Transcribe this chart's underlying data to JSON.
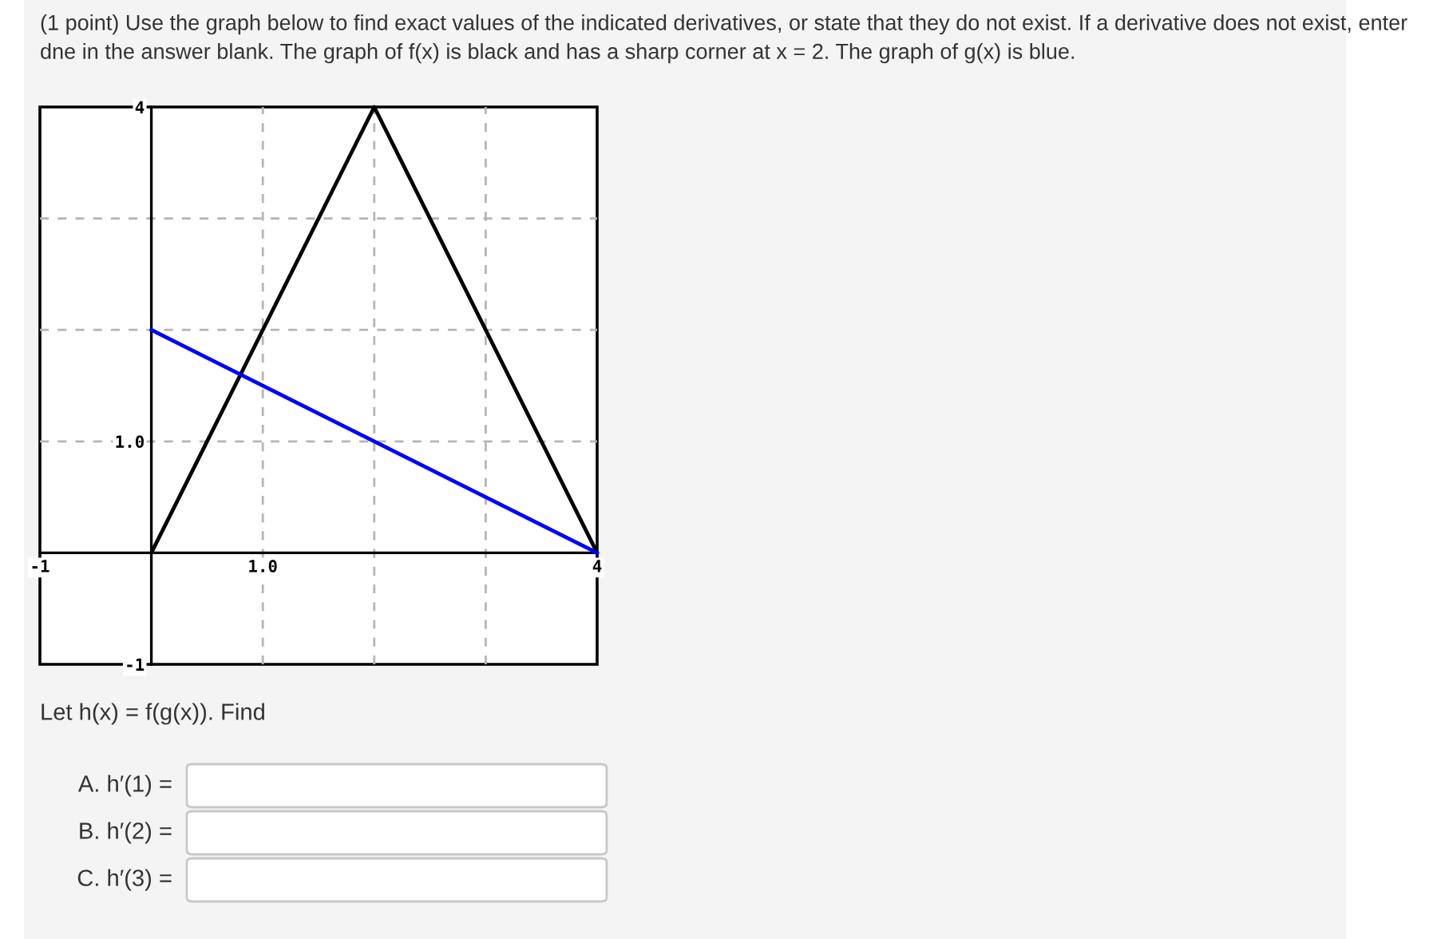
{
  "chart_data": {
    "type": "line",
    "title": "(1 point) Use the graph below to find exact values of the indicated derivatives, or state that they do not exist. If a derivative does not exist, enter dne in the answer blank. The graph of f(x) is black and has a sharp corner at x = 2. The graph of g(x) is blue.",
    "series": [
      {
        "x": [
          0,
          2,
          4
        ],
        "values": [
          0,
          4,
          0
        ],
        "color": "#000000"
      },
      {
        "x": [
          0,
          4
        ],
        "values": [
          2,
          0
        ],
        "color": "#0000ff"
      }
    ],
    "xlim": [
      -1,
      4
    ],
    "ylim": [
      -1,
      4
    ],
    "xticks": [
      {
        "value": -1,
        "label": "-1"
      },
      {
        "value": 1,
        "label": "1.0"
      },
      {
        "value": 2,
        "label": null
      },
      {
        "value": 3,
        "label": null
      },
      {
        "value": 4,
        "label": "4"
      }
    ],
    "yticks": [
      {
        "value": -1,
        "label": "-1"
      },
      {
        "value": 1,
        "label": "1.0"
      },
      {
        "value": 2,
        "label": null
      },
      {
        "value": 3,
        "label": null
      },
      {
        "value": 4,
        "label": "4"
      }
    ],
    "grid": true,
    "annotations": [
      "Let h(x) = f(g(x)). Find",
      "A. h′(1) =",
      "B. h′(2) =",
      "C. h′(3) ="
    ]
  }
}
